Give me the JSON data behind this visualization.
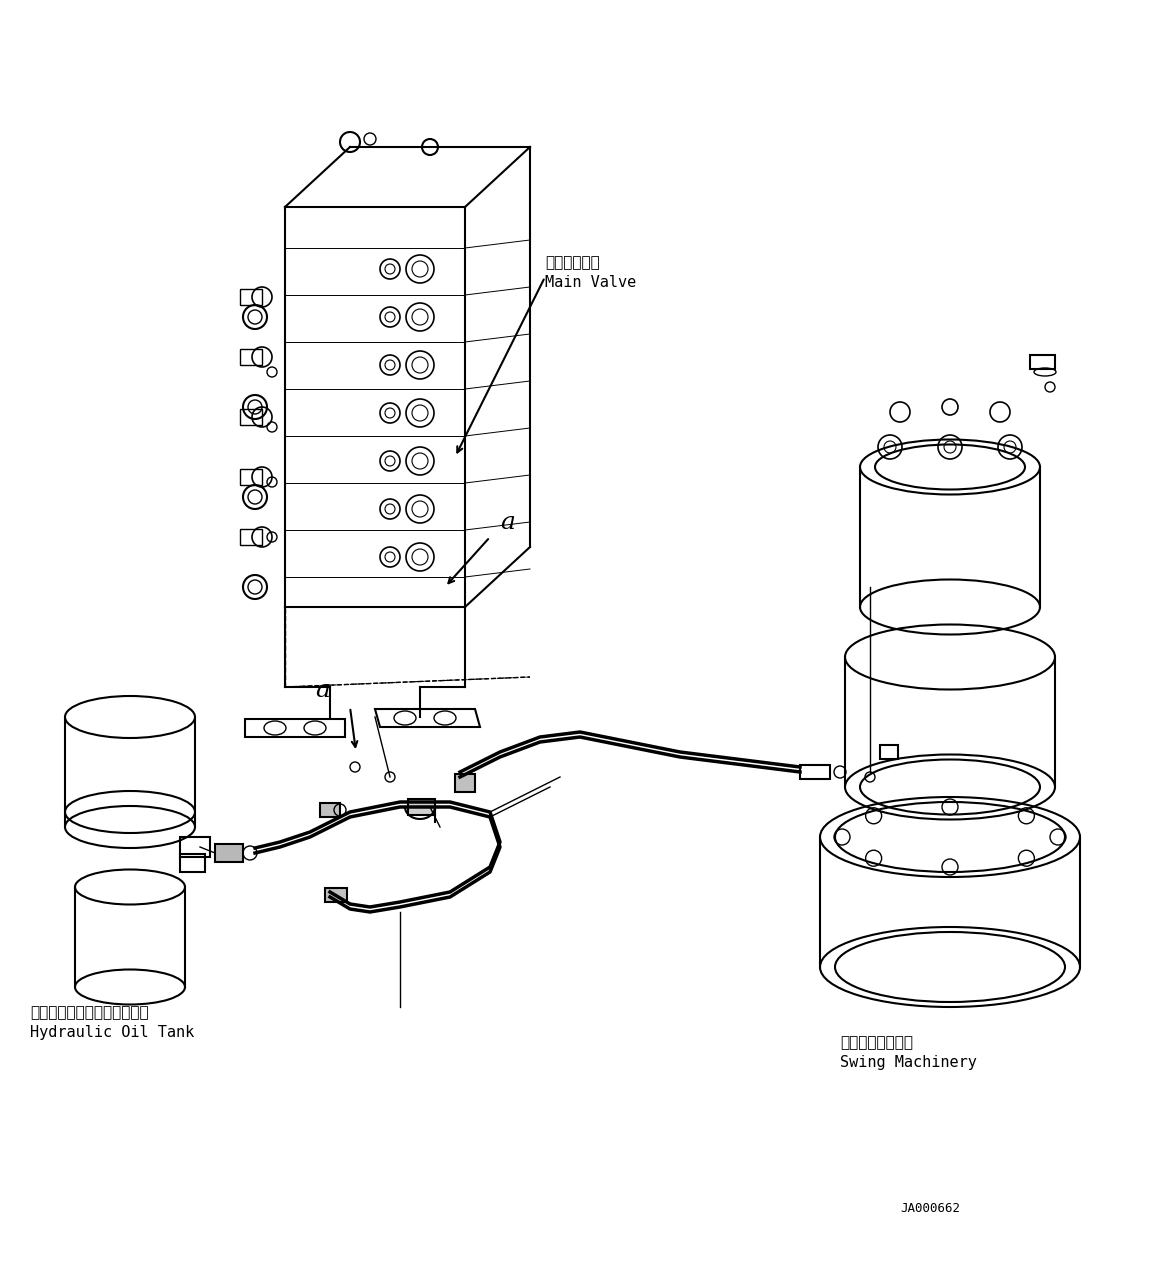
{
  "background_color": "#ffffff",
  "line_color": "#000000",
  "figure_width": 11.63,
  "figure_height": 12.67,
  "dpi": 100,
  "label_main_valve_jp": "メインバルブ",
  "label_main_valve_en": "Main Valve",
  "label_hydraulic_jp": "ハイドロリックオイルタンク",
  "label_hydraulic_en": "Hydraulic Oil Tank",
  "label_swing_jp": "スイングマシナリ",
  "label_swing_en": "Swing Machinery",
  "label_a1": "a",
  "label_a2": "a",
  "label_code": "JA000662",
  "font_size_label": 11,
  "font_size_jp": 11,
  "font_size_code": 9
}
